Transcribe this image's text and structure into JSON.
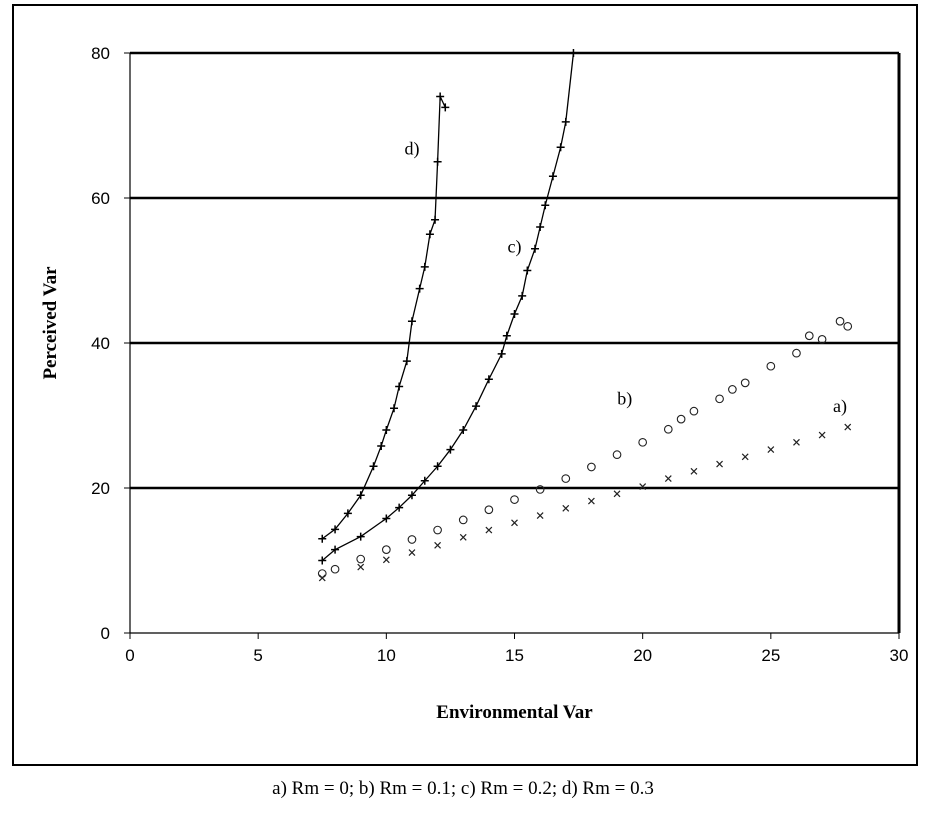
{
  "chart_data": {
    "type": "scatter",
    "xlabel": "Environmental Var",
    "ylabel": "Perceived Var",
    "xlim": [
      0,
      30
    ],
    "ylim": [
      0,
      80
    ],
    "xticks": [
      0,
      5,
      10,
      15,
      20,
      25,
      30
    ],
    "yticks": [
      0,
      20,
      40,
      60,
      80
    ],
    "grid": "horizontal",
    "series": [
      {
        "name": "a)",
        "marker": "x",
        "x": [
          7.5,
          9,
          10,
          11,
          12,
          13,
          14,
          15,
          16,
          17,
          18,
          19,
          20,
          21,
          22,
          23,
          24,
          25,
          26,
          27,
          28
        ],
        "y": [
          7.6,
          9.1,
          10.1,
          11.1,
          12.1,
          13.2,
          14.2,
          15.2,
          16.2,
          17.2,
          18.2,
          19.2,
          20.2,
          21.3,
          22.3,
          23.3,
          24.3,
          25.3,
          26.3,
          27.3,
          28.4
        ]
      },
      {
        "name": "b)",
        "marker": "o",
        "x": [
          7.5,
          8,
          9,
          10,
          11,
          12,
          13,
          14,
          15,
          16,
          17,
          18,
          19,
          20,
          21,
          21.5,
          22,
          23,
          23.5,
          24,
          25,
          26,
          26.5,
          27,
          27.7,
          28
        ],
        "y": [
          8.2,
          8.8,
          10.2,
          11.5,
          12.9,
          14.2,
          15.6,
          17.0,
          18.4,
          19.8,
          21.3,
          22.9,
          24.6,
          26.3,
          28.1,
          29.5,
          30.6,
          32.3,
          33.6,
          34.5,
          36.8,
          38.6,
          41.0,
          40.5,
          43.0,
          42.3
        ]
      },
      {
        "name": "c)",
        "marker": "+",
        "x": [
          7.5,
          8,
          9,
          10,
          10.5,
          11,
          11.5,
          12,
          12.5,
          13,
          13.5,
          14,
          14.5,
          14.7,
          15,
          15.3,
          15.5,
          15.8,
          16,
          16.2,
          16.5,
          16.8,
          17,
          17.3
        ],
        "y": [
          10.0,
          11.5,
          13.3,
          15.8,
          17.3,
          19.0,
          21.0,
          23.0,
          25.3,
          28.0,
          31.3,
          35.0,
          38.5,
          41.0,
          44.0,
          46.5,
          50.0,
          53.0,
          56.0,
          59.0,
          63.0,
          67.0,
          70.5,
          80.0
        ]
      },
      {
        "name": "d)",
        "marker": "+",
        "x": [
          7.5,
          8,
          8.5,
          9,
          9.5,
          9.8,
          10,
          10.3,
          10.5,
          10.8,
          11,
          11.3,
          11.5,
          11.7,
          11.9,
          12,
          12.1,
          12.3
        ],
        "y": [
          13.0,
          14.3,
          16.5,
          19.0,
          23.0,
          25.8,
          28.0,
          31.0,
          34.0,
          37.5,
          43.0,
          47.5,
          50.5,
          55.0,
          57.0,
          65.0,
          74.0,
          72.5
        ]
      }
    ],
    "annotations": [
      {
        "text": "a)",
        "x": 27.7,
        "y": 30.5
      },
      {
        "text": "b)",
        "x": 19.3,
        "y": 31.5
      },
      {
        "text": "c)",
        "x": 15.0,
        "y": 52.5
      },
      {
        "text": "d)",
        "x": 11.0,
        "y": 66.0
      }
    ]
  },
  "caption": "a) Rm = 0;   b) Rm = 0.1;   c) Rm = 0.2;   d) Rm = 0.3"
}
